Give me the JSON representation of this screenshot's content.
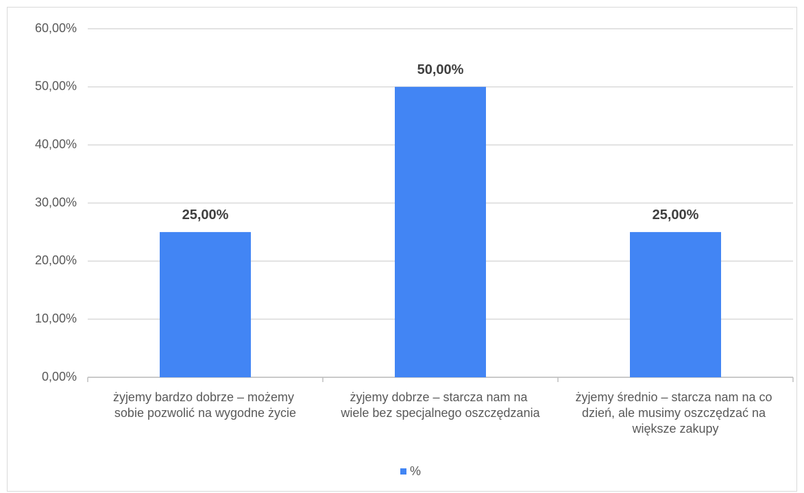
{
  "chart_data": {
    "type": "bar",
    "categories": [
      "żyjemy bardzo dobrze – możemy sobie pozwolić na wygodne życie",
      "żyjemy dobrze – starcza nam na wiele bez specjalnego oszczędzania",
      "żyjemy średnio – starcza nam na co dzień, ale musimy oszczędzać na większe zakupy"
    ],
    "series": [
      {
        "name": "%",
        "color": "#4285f4",
        "values": [
          25,
          50,
          25
        ],
        "value_labels": [
          "25,00%",
          "50,00%",
          "25,00%"
        ]
      }
    ],
    "ylim": [
      0,
      60
    ],
    "yticks": [
      {
        "value": 0,
        "label": "0,00%"
      },
      {
        "value": 10,
        "label": "10,00%"
      },
      {
        "value": 20,
        "label": "20,00%"
      },
      {
        "value": 30,
        "label": "30,00%"
      },
      {
        "value": 40,
        "label": "40,00%"
      },
      {
        "value": 50,
        "label": "50,00%"
      },
      {
        "value": 60,
        "label": "60,00%"
      }
    ],
    "grid": true,
    "legend": "bottom"
  }
}
